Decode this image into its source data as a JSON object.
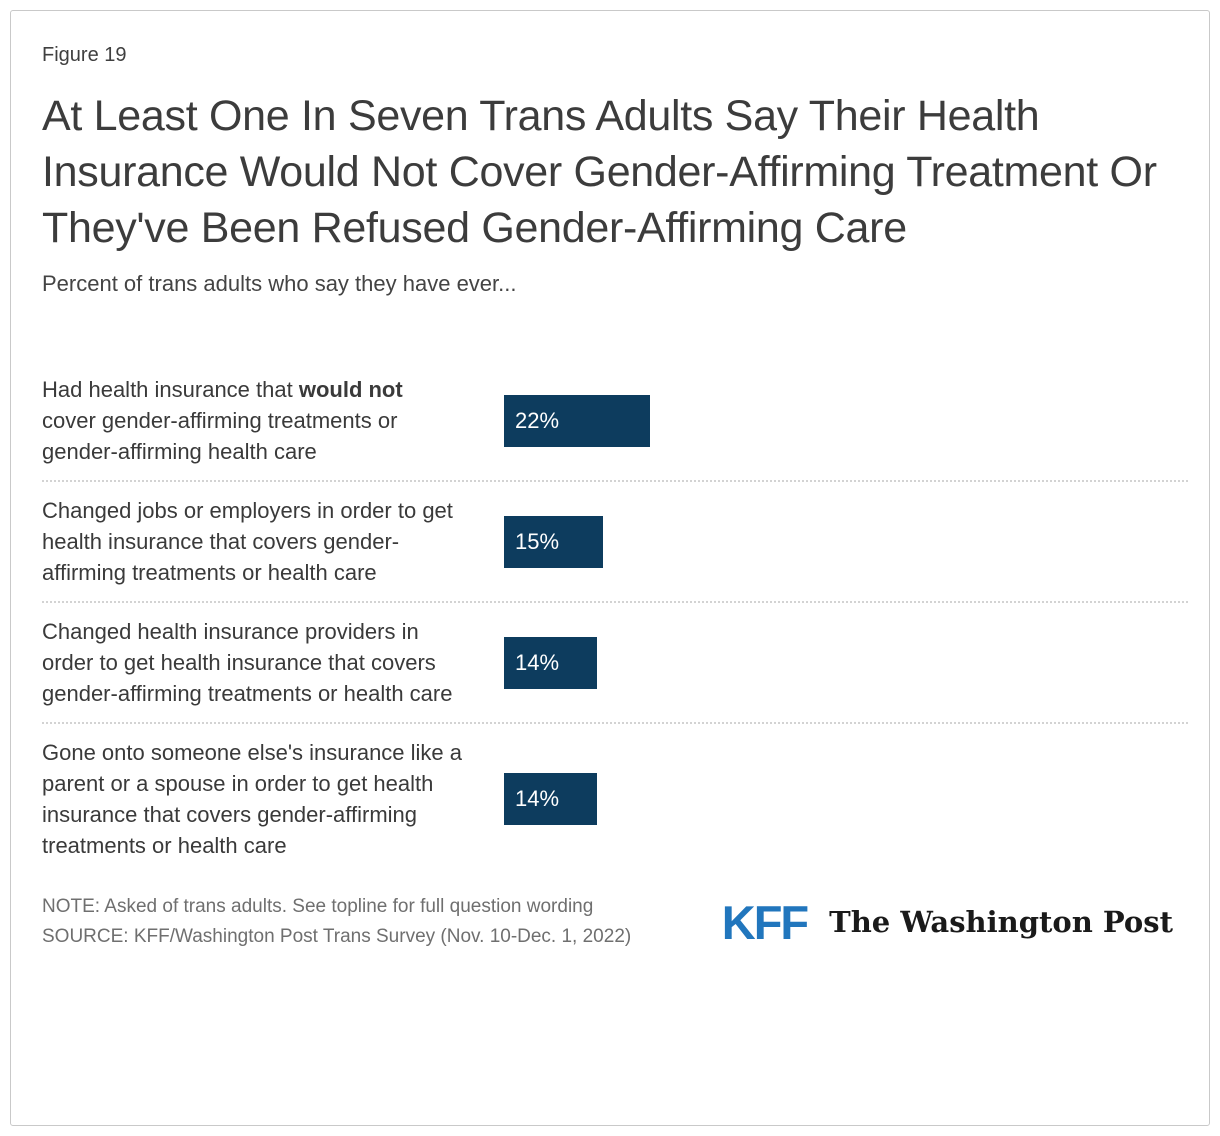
{
  "figure_label": "Figure 19",
  "title": "At Least One In Seven Trans Adults Say Their Health Insurance Would Not Cover Gender-Affirming Treatment Or They've Been Refused Gender-Affirming Care",
  "subtitle": "Percent of trans adults who say they have ever...",
  "chart_data": {
    "type": "bar",
    "orientation": "horizontal",
    "title": "At Least One In Seven Trans Adults Say Their Health Insurance Would Not Cover Gender-Affirming Treatment Or They've Been Refused Gender-Affirming Care",
    "subtitle": "Percent of trans adults who say they have ever...",
    "categories": [
      "Had health insurance that would not cover gender-affirming treatments or gender-affirming health care",
      "Changed jobs or employers in order to get health insurance that covers gender-affirming treatments or health care",
      "Changed health insurance providers in order to get health insurance that covers gender-affirming treatments or health care",
      "Gone onto someone else's insurance like a parent or a spouse in order to get health insurance that covers gender-affirming treatments or health care"
    ],
    "values": [
      22,
      15,
      14,
      14
    ],
    "value_labels": [
      "22%",
      "15%",
      "14%",
      "14%"
    ],
    "bar_color": "#0d3c5e",
    "xlim": [
      0,
      100
    ],
    "grid": false,
    "axis_ticks": "none",
    "value_label_position": "inside-left",
    "separator_style": "dotted"
  },
  "rows": [
    {
      "label_pre": "Had health insurance that ",
      "label_bold": "would not",
      "label_post": " cover gender-affirming treatments or gender-affirming health care",
      "value_label": "22%"
    },
    {
      "label_pre": "Changed jobs or employers in order to get health insurance that covers gender-affirming treatments or health care",
      "label_bold": "",
      "label_post": "",
      "value_label": "15%"
    },
    {
      "label_pre": "Changed health insurance providers in order to get health insurance that covers gender-affirming treatments or health care",
      "label_bold": "",
      "label_post": "",
      "value_label": "14%"
    },
    {
      "label_pre": "Gone onto someone else's insurance like a parent or a spouse in order to get health insurance that covers gender-affirming treatments or health care",
      "label_bold": "",
      "label_post": "",
      "value_label": "14%"
    }
  ],
  "footer": {
    "note": "NOTE: Asked of trans adults. See topline for full question wording",
    "source": "SOURCE: KFF/Washington Post Trans Survey (Nov. 10-Dec. 1, 2022)",
    "kff_logo_text": "KFF",
    "wapo_logo_text": "The Washington Post",
    "kff_logo_color": "#2176bd"
  }
}
